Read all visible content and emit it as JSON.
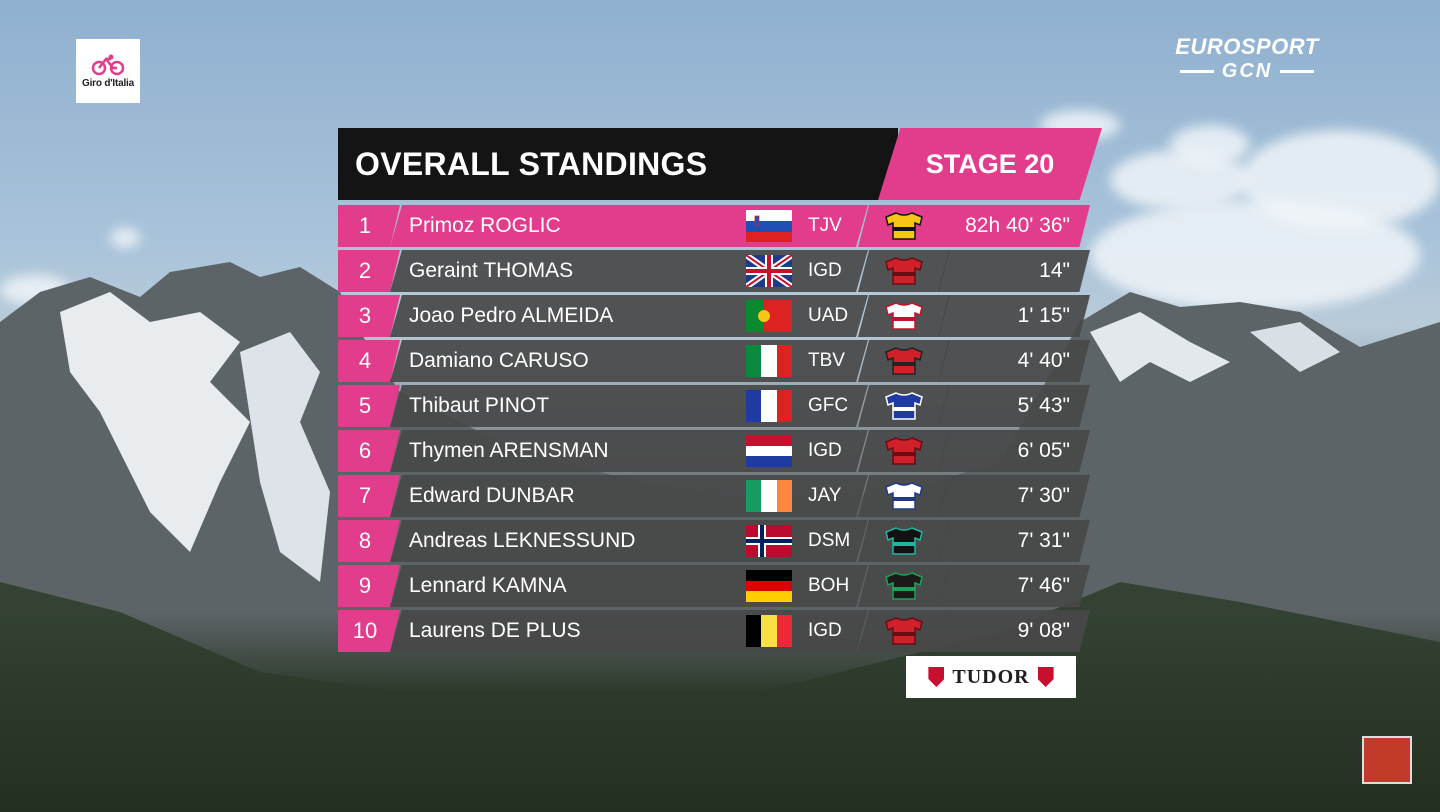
{
  "logos": {
    "giro_text": "Giro d'Italia",
    "brand_line1": "EUROSPORT",
    "brand_line2": "GCN",
    "sponsor": "TUDOR"
  },
  "header": {
    "title": "OVERALL STANDINGS",
    "stage": "STAGE 20"
  },
  "standings": [
    {
      "rank": "1",
      "name": "Primoz ROGLIC",
      "team": "TJV",
      "time": "82h 40' 36\"",
      "flag": "slovenia-flag",
      "jersey": "jumbo-jersey-icon"
    },
    {
      "rank": "2",
      "name": "Geraint THOMAS",
      "team": "IGD",
      "time": "14\"",
      "flag": "uk-flag",
      "jersey": "ineos-jersey-icon"
    },
    {
      "rank": "3",
      "name": "Joao Pedro ALMEIDA",
      "team": "UAD",
      "time": "1' 15\"",
      "flag": "portugal-flag",
      "jersey": "uae-jersey-icon"
    },
    {
      "rank": "4",
      "name": "Damiano CARUSO",
      "team": "TBV",
      "time": "4' 40\"",
      "flag": "italy-flag",
      "jersey": "bahrain-jersey-icon"
    },
    {
      "rank": "5",
      "name": "Thibaut PINOT",
      "team": "GFC",
      "time": "5' 43\"",
      "flag": "france-flag",
      "jersey": "groupama-jersey-icon"
    },
    {
      "rank": "6",
      "name": "Thymen ARENSMAN",
      "team": "IGD",
      "time": "6' 05\"",
      "flag": "netherlands-flag",
      "jersey": "ineos-jersey-icon"
    },
    {
      "rank": "7",
      "name": "Edward DUNBAR",
      "team": "JAY",
      "time": "7' 30\"",
      "flag": "ireland-flag",
      "jersey": "jayco-jersey-icon"
    },
    {
      "rank": "8",
      "name": "Andreas LEKNESSUND",
      "team": "DSM",
      "time": "7' 31\"",
      "flag": "norway-flag",
      "jersey": "dsm-jersey-icon"
    },
    {
      "rank": "9",
      "name": "Lennard KAMNA",
      "team": "BOH",
      "time": "7' 46\"",
      "flag": "germany-flag",
      "jersey": "bora-jersey-icon"
    },
    {
      "rank": "10",
      "name": "Laurens DE PLUS",
      "team": "IGD",
      "time": "9' 08\"",
      "flag": "belgium-flag",
      "jersey": "ineos-jersey-icon"
    }
  ],
  "colors": {
    "accent": "#e23d8c",
    "panel": "#141414",
    "row": "#484848"
  }
}
